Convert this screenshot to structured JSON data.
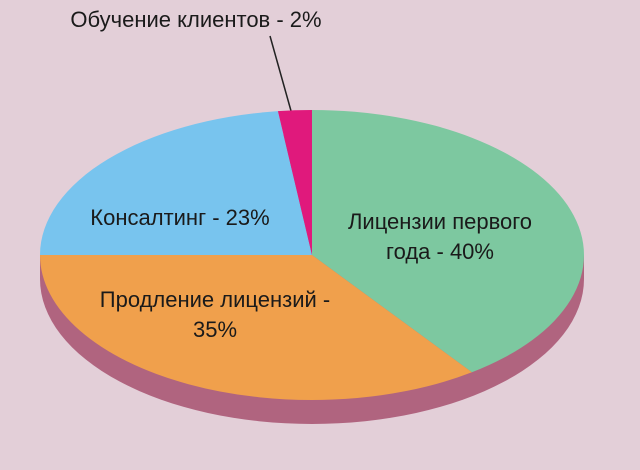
{
  "chart_data": {
    "type": "pie",
    "values": [
      40,
      35,
      23,
      2
    ],
    "value_labels": [
      "Лицензии первого\nгода - 40%",
      "Продление лицензий -\n35%",
      "Консалтинг - 23%",
      "Обучение клиентов - 2%"
    ],
    "colors": [
      "#7dc8a0",
      "#f0a04c",
      "#78c4ee",
      "#e0197c"
    ]
  }
}
